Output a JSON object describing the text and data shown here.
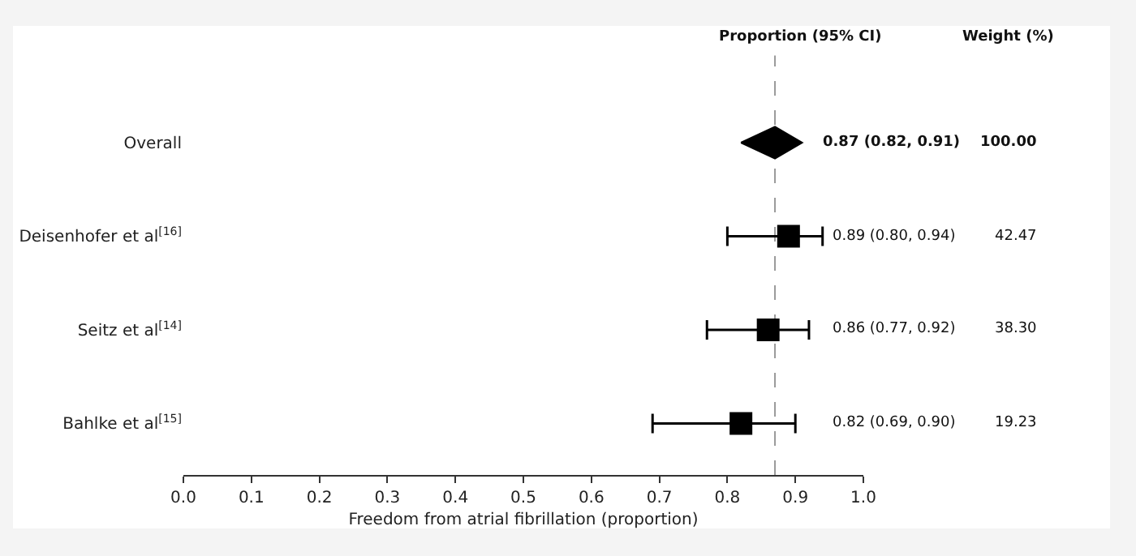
{
  "chart_data": {
    "type": "scatter",
    "orientation": "horizontal",
    "categories": [
      "Overall",
      "Deisenhofer et al$^{[16]}$",
      "Seitz et al$^{[14]}$",
      "Bahlke et al$^{[15]}$"
    ],
    "xlabel": "Freedom from atrial fibrillation (proportion)",
    "xlim": [
      0,
      1
    ],
    "xticks": [
      {
        "value": 0,
        "label": "0.0"
      },
      0.1,
      0.2,
      0.3,
      0.4,
      0.5,
      0.6,
      0.7,
      0.8,
      0.9,
      {
        "value": 1,
        "label": "1.0"
      }
    ],
    "series": [
      {
        "color": "#000000",
        "marker": "diamond",
        "values": [
          0.87,
          null,
          null,
          null
        ],
        "errors": [
          [
            0.82,
            0.91
          ],
          null,
          null,
          null
        ],
        "value_labels": [
          "0.87 (0.82, 0.91)",
          null,
          null,
          null
        ]
      },
      {
        "color": "#000000",
        "marker": "square",
        "values": [
          null,
          0.89,
          0.86,
          0.82
        ],
        "errors": [
          null,
          [
            0.8,
            0.94
          ],
          [
            0.77,
            0.92
          ],
          [
            0.69,
            0.9
          ]
        ],
        "value_labels": [
          null,
          "0.89 (0.80, 0.94)",
          "0.86 (0.77, 0.92)",
          "0.82 (0.69, 0.90)"
        ]
      }
    ],
    "ref_lines": [
      {
        "axis": "x",
        "value": 0.87,
        "line_style": "dashed",
        "color": "#999999"
      }
    ],
    "annotations": [
      "Proportion (95% CI)",
      "Weight (%)",
      "100.00",
      "42.47",
      "38.30",
      "19.23"
    ]
  }
}
